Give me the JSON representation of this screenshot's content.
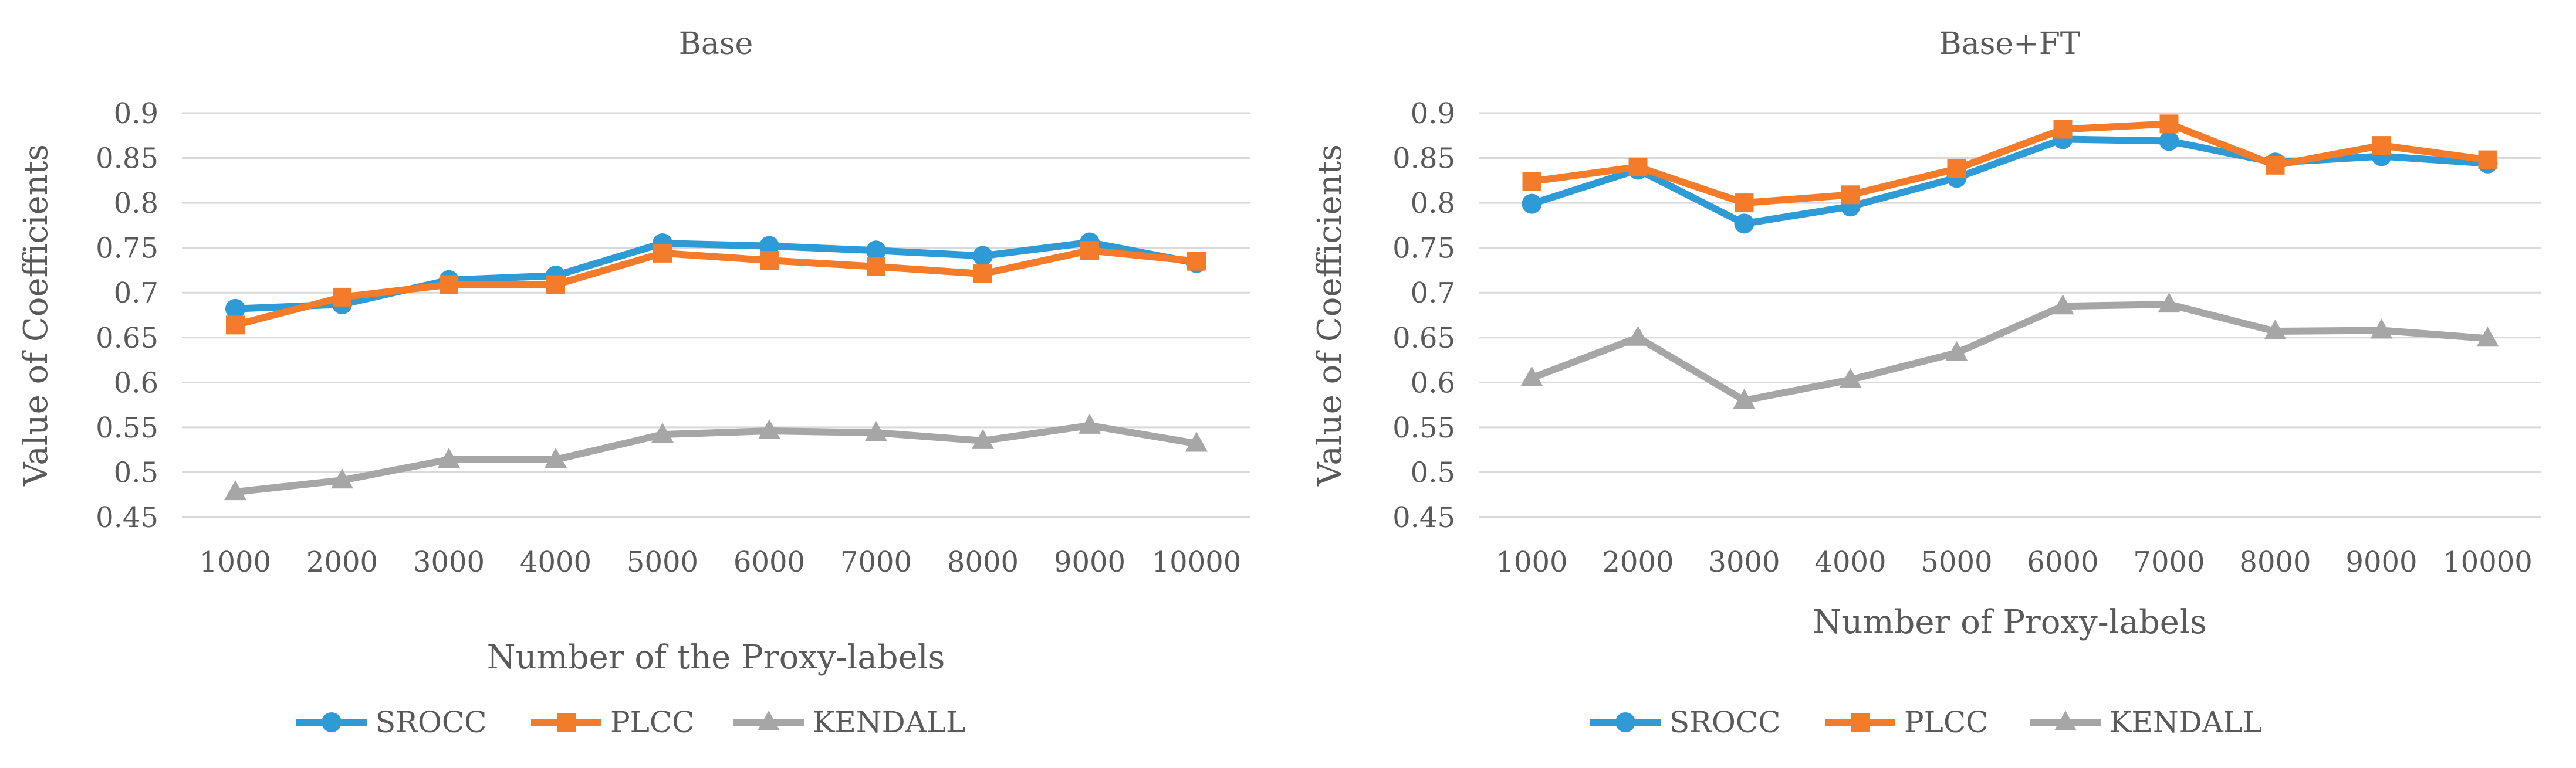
{
  "colors": {
    "SROCC": "#2e9ad6",
    "PLCC": "#f47b2a",
    "KENDALL": "#a6a6a6",
    "grid": "#d9d9d9",
    "text": "#595959"
  },
  "chart_data": [
    {
      "type": "line",
      "title": "Base",
      "xlabel": "Number of the Proxy-labels",
      "ylabel": "Value of Coefficients",
      "categories": [
        "1000",
        "2000",
        "3000",
        "4000",
        "5000",
        "6000",
        "7000",
        "8000",
        "9000",
        "10000"
      ],
      "yticks": [
        "0.45",
        "0.5",
        "0.55",
        "0.6",
        "0.65",
        "0.7",
        "0.75",
        "0.8",
        "0.85",
        "0.9"
      ],
      "ylim": [
        0.45,
        0.9
      ],
      "grid": true,
      "legend_position": "bottom",
      "series": [
        {
          "name": "SROCC",
          "marker": "circle",
          "values": [
            0.682,
            0.687,
            0.714,
            0.719,
            0.755,
            0.752,
            0.747,
            0.741,
            0.756,
            0.733
          ]
        },
        {
          "name": "PLCC",
          "marker": "square",
          "values": [
            0.664,
            0.695,
            0.709,
            0.709,
            0.744,
            0.736,
            0.729,
            0.721,
            0.747,
            0.735
          ]
        },
        {
          "name": "KENDALL",
          "marker": "triangle",
          "values": [
            0.478,
            0.491,
            0.514,
            0.514,
            0.542,
            0.546,
            0.544,
            0.535,
            0.552,
            0.532
          ]
        }
      ]
    },
    {
      "type": "line",
      "title": "Base+FT",
      "xlabel": "Number of Proxy-labels",
      "ylabel": "Value of Coefficients",
      "categories": [
        "1000",
        "2000",
        "3000",
        "4000",
        "5000",
        "6000",
        "7000",
        "8000",
        "9000",
        "10000"
      ],
      "yticks": [
        "0.45",
        "0.5",
        "0.55",
        "0.6",
        "0.65",
        "0.7",
        "0.75",
        "0.8",
        "0.85",
        "0.9"
      ],
      "ylim": [
        0.45,
        0.9
      ],
      "grid": true,
      "legend_position": "bottom",
      "series": [
        {
          "name": "SROCC",
          "marker": "circle",
          "values": [
            0.799,
            0.837,
            0.777,
            0.796,
            0.828,
            0.871,
            0.869,
            0.845,
            0.852,
            0.844
          ]
        },
        {
          "name": "PLCC",
          "marker": "square",
          "values": [
            0.824,
            0.84,
            0.8,
            0.809,
            0.838,
            0.882,
            0.888,
            0.842,
            0.864,
            0.848
          ]
        },
        {
          "name": "KENDALL",
          "marker": "triangle",
          "values": [
            0.605,
            0.65,
            0.58,
            0.603,
            0.633,
            0.685,
            0.687,
            0.657,
            0.658,
            0.649
          ]
        }
      ]
    }
  ]
}
